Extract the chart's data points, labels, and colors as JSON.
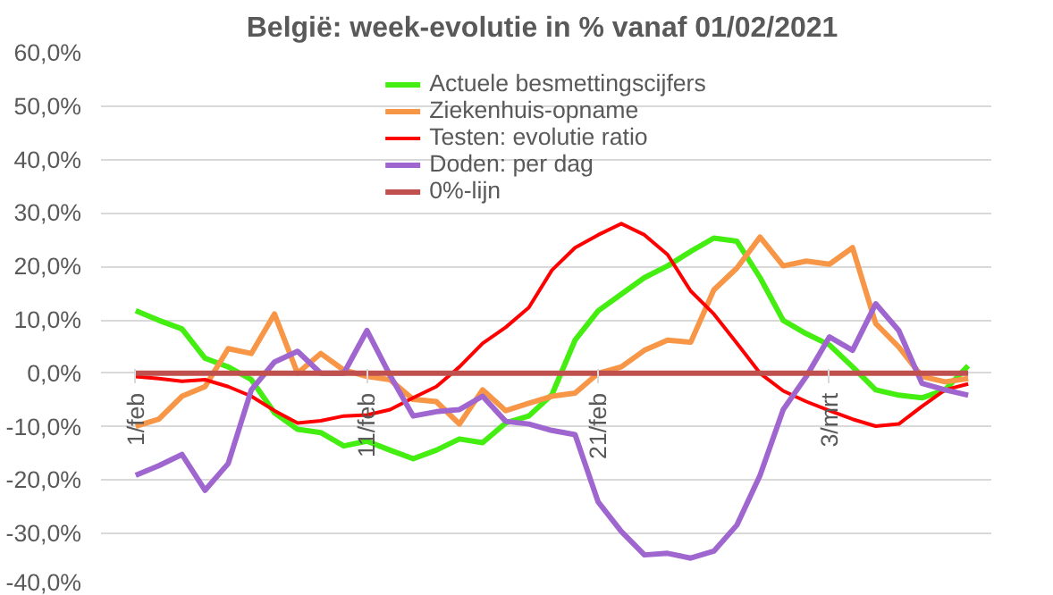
{
  "chart_data": {
    "type": "line",
    "title": "België: week-evolutie in %  vanaf 01/02/2021",
    "x": [
      "2021-02-01",
      "2021-02-02",
      "2021-02-03",
      "2021-02-04",
      "2021-02-05",
      "2021-02-06",
      "2021-02-07",
      "2021-02-08",
      "2021-02-09",
      "2021-02-10",
      "2021-02-11",
      "2021-02-12",
      "2021-02-13",
      "2021-02-14",
      "2021-02-15",
      "2021-02-16",
      "2021-02-17",
      "2021-02-18",
      "2021-02-19",
      "2021-02-20",
      "2021-02-21",
      "2021-02-22",
      "2021-02-23",
      "2021-02-24",
      "2021-02-25",
      "2021-02-26",
      "2021-02-27",
      "2021-02-28",
      "2021-03-01",
      "2021-03-02",
      "2021-03-03",
      "2021-03-04",
      "2021-03-05",
      "2021-03-06",
      "2021-03-07",
      "2021-03-08",
      "2021-03-09"
    ],
    "series": [
      {
        "name": "Actuele besmettingscijfers",
        "color": "#44ee11",
        "values": [
          11.7,
          9.9,
          8.3,
          2.8,
          1.2,
          -1.2,
          -7.4,
          -10.5,
          -11.1,
          -13.6,
          -12.7,
          -14.4,
          -16.0,
          -14.4,
          -12.3,
          -13.0,
          -9.3,
          -8.0,
          -4.0,
          6.2,
          11.7,
          14.8,
          17.9,
          20.1,
          22.8,
          25.3,
          24.7,
          17.9,
          9.9,
          7.4,
          5.3,
          1.2,
          -3.1,
          -4.1,
          -4.6,
          -3.1,
          1.4
        ]
      },
      {
        "name": "Ziekenhuis-opname",
        "color": "#f79646",
        "values": [
          -9.9,
          -8.6,
          -4.3,
          -2.5,
          4.6,
          3.7,
          11.1,
          0.0,
          3.7,
          0.6,
          -0.6,
          -1.2,
          -4.9,
          -5.3,
          -9.5,
          -3.1,
          -7.0,
          -5.6,
          -4.3,
          -3.7,
          0.0,
          1.2,
          4.3,
          6.2,
          5.8,
          15.6,
          19.7,
          25.5,
          20.1,
          21.0,
          20.4,
          23.5,
          9.3,
          4.9,
          -0.6,
          -1.6,
          -1.0
        ]
      },
      {
        "name": "Testen: evolutie ratio",
        "color": "#ff0000",
        "values": [
          -0.6,
          -1.0,
          -1.5,
          -1.2,
          -2.5,
          -4.3,
          -7.0,
          -9.3,
          -8.9,
          -8.0,
          -7.8,
          -6.8,
          -4.6,
          -2.5,
          1.2,
          5.6,
          8.6,
          12.3,
          19.3,
          23.5,
          25.9,
          28.0,
          25.9,
          22.2,
          15.4,
          11.1,
          5.6,
          0.0,
          -3.3,
          -5.3,
          -7.0,
          -8.6,
          -9.9,
          -9.5,
          -6.2,
          -3.1,
          -2.0
        ]
      },
      {
        "name": "Doden: per dag",
        "color": "#a066d0",
        "values": [
          -19.1,
          -17.3,
          -15.2,
          -21.9,
          -16.9,
          -3.1,
          2.1,
          4.1,
          0.0,
          0.0,
          8.0,
          -0.4,
          -8.0,
          -7.2,
          -6.8,
          -4.3,
          -9.0,
          -9.5,
          -10.7,
          -11.5,
          -24.1,
          -29.6,
          -34.0,
          -33.7,
          -34.6,
          -33.3,
          -28.4,
          -19.1,
          -6.8,
          -0.6,
          6.8,
          4.3,
          13.0,
          8.0,
          -1.9,
          -3.1,
          -4.1
        ]
      },
      {
        "name": "0%-lijn",
        "color": "#c0504d",
        "values": [
          0,
          0,
          0,
          0,
          0,
          0,
          0,
          0,
          0,
          0,
          0,
          0,
          0,
          0,
          0,
          0,
          0,
          0,
          0,
          0,
          0,
          0,
          0,
          0,
          0,
          0,
          0,
          0,
          0,
          0,
          0,
          0,
          0,
          0,
          0,
          0,
          0
        ]
      }
    ],
    "xlim": [
      "2021-01-30T12:00",
      "2021-03-10"
    ],
    "xticks": [
      {
        "value": "2021-02-01",
        "label": "1/feb"
      },
      {
        "value": "2021-02-11",
        "label": "11/feb"
      },
      {
        "value": "2021-02-21",
        "label": "21/feb"
      },
      {
        "value": "2021-03-03",
        "label": "3/mrt"
      }
    ],
    "ylim": [
      -40,
      60
    ],
    "yticks": [
      {
        "value": -40,
        "label": "-40,0%"
      },
      {
        "value": -30,
        "label": "-30,0%"
      },
      {
        "value": -20,
        "label": "-20,0%"
      },
      {
        "value": -10,
        "label": "-10,0%"
      },
      {
        "value": 0,
        "label": "0,0%"
      },
      {
        "value": 10,
        "label": "10,0%"
      },
      {
        "value": 20,
        "label": "20,0%"
      },
      {
        "value": 30,
        "label": "30,0%"
      },
      {
        "value": 40,
        "label": "40,0%"
      },
      {
        "value": 50,
        "label": "50,0%"
      },
      {
        "value": 60,
        "label": "60,0%"
      }
    ],
    "grid": "y",
    "legend": "top",
    "line_style": "solid",
    "marker": "none"
  }
}
